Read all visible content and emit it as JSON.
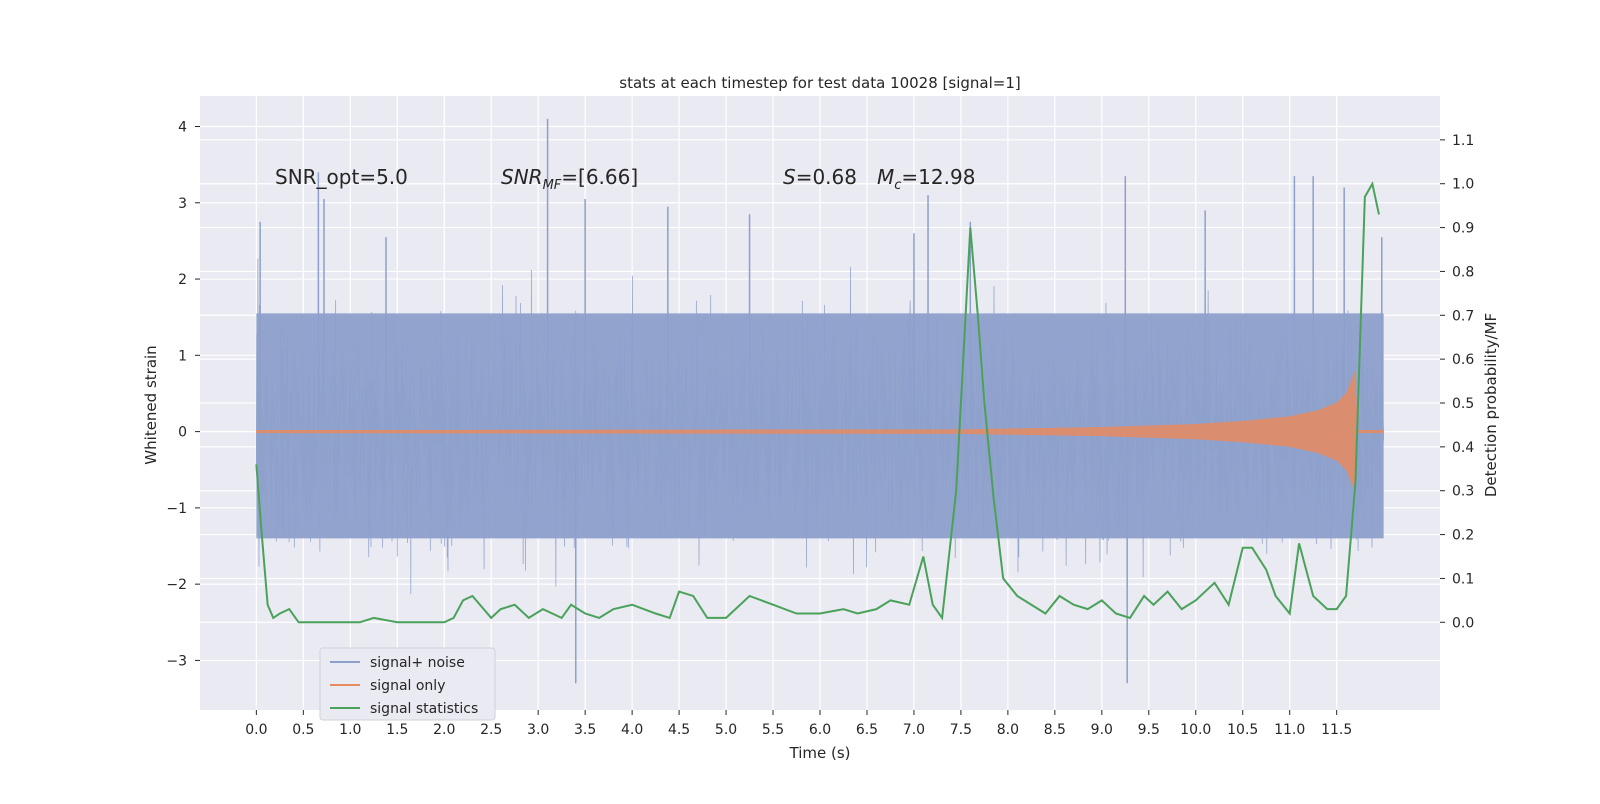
{
  "chart_data": {
    "type": "line",
    "title": "stats at each timestep for test data 10028 [signal=1]",
    "xlabel": "Time (s)",
    "ylabel_left": "Whitened strain",
    "ylabel_right": "Detection probability/MF",
    "xlim": [
      -0.6,
      12.6
    ],
    "ylim_left": [
      -3.65,
      4.4
    ],
    "ylim_right": [
      -0.2,
      1.2
    ],
    "x_ticks": [
      0.0,
      0.5,
      1.0,
      1.5,
      2.0,
      2.5,
      3.0,
      3.5,
      4.0,
      4.5,
      5.0,
      5.5,
      6.0,
      6.5,
      7.0,
      7.5,
      8.0,
      8.5,
      9.0,
      9.5,
      10.0,
      10.5,
      11.0,
      11.5
    ],
    "x_tick_labels": [
      "0.0",
      "0.5",
      "1.0",
      "1.5",
      "2.0",
      "2.5",
      "3.0",
      "3.5",
      "4.0",
      "4.5",
      "5.0",
      "5.5",
      "6.0",
      "6.5",
      "7.0",
      "7.5",
      "8.0",
      "8.5",
      "9.0",
      "9.5",
      "10.0",
      "10.5",
      "11.0",
      "11.5"
    ],
    "y_left_ticks": [
      -3,
      -2,
      -1,
      0,
      1,
      2,
      3,
      4
    ],
    "y_left_tick_labels": [
      "−3",
      "−2",
      "−1",
      "0",
      "1",
      "2",
      "3",
      "4"
    ],
    "y_right_ticks": [
      0.0,
      0.1,
      0.2,
      0.3,
      0.4,
      0.5,
      0.6,
      0.7,
      0.8,
      0.9,
      1.0,
      1.1
    ],
    "y_right_tick_labels": [
      "0.0",
      "0.1",
      "0.2",
      "0.3",
      "0.4",
      "0.5",
      "0.6",
      "0.7",
      "0.8",
      "0.9",
      "1.0",
      "1.1"
    ],
    "grid": true,
    "legend_position": "lower-left",
    "annotations": {
      "snr_opt": "SNR_opt=5.0",
      "snr_mf_main": "SNR",
      "snr_mf_sub": "MF",
      "snr_mf_rest": "=[6.66]",
      "s_var": "S",
      "s_rest": "=0.68",
      "mc_var": "M",
      "mc_sub": "c",
      "mc_rest": "=12.98"
    },
    "series": [
      {
        "name": "signal+ noise",
        "color": "#8da0cb",
        "axis": "left",
        "t_range": [
          0.0,
          12.0
        ],
        "band_core": [
          -1.4,
          1.55
        ],
        "band_extreme": [
          -3.3,
          4.1
        ],
        "spikes": [
          [
            0.04,
            2.75
          ],
          [
            0.66,
            3.4
          ],
          [
            0.72,
            3.05
          ],
          [
            1.38,
            2.55
          ],
          [
            3.1,
            4.1
          ],
          [
            3.5,
            3.05
          ],
          [
            3.4,
            -3.3
          ],
          [
            4.38,
            2.95
          ],
          [
            5.25,
            2.85
          ],
          [
            7.0,
            2.6
          ],
          [
            7.15,
            3.1
          ],
          [
            7.6,
            2.75
          ],
          [
            9.25,
            3.35
          ],
          [
            9.27,
            -3.3
          ],
          [
            10.1,
            2.9
          ],
          [
            11.05,
            3.35
          ],
          [
            11.25,
            3.35
          ],
          [
            11.58,
            3.2
          ],
          [
            11.98,
            2.55
          ]
        ]
      },
      {
        "name": "signal only",
        "color": "#e78a5e",
        "axis": "left",
        "envelope": [
          [
            0.0,
            0.02
          ],
          [
            7.5,
            0.03
          ],
          [
            8.0,
            0.04
          ],
          [
            9.0,
            0.06
          ],
          [
            10.0,
            0.1
          ],
          [
            10.5,
            0.14
          ],
          [
            11.0,
            0.2
          ],
          [
            11.3,
            0.28
          ],
          [
            11.5,
            0.38
          ],
          [
            11.6,
            0.5
          ],
          [
            11.65,
            0.65
          ],
          [
            11.7,
            0.8
          ],
          [
            11.72,
            0.02
          ],
          [
            12.0,
            0.02
          ]
        ]
      },
      {
        "name": "signal statistics",
        "color": "#4aa25a",
        "axis": "right",
        "x": [
          0.0,
          0.05,
          0.12,
          0.18,
          0.25,
          0.35,
          0.45,
          0.55,
          0.7,
          0.85,
          1.0,
          1.1,
          1.25,
          1.5,
          1.75,
          2.0,
          2.1,
          2.2,
          2.3,
          2.5,
          2.6,
          2.75,
          2.9,
          3.05,
          3.25,
          3.35,
          3.5,
          3.65,
          3.8,
          4.0,
          4.25,
          4.4,
          4.5,
          4.65,
          4.8,
          5.0,
          5.25,
          5.5,
          5.75,
          6.0,
          6.25,
          6.4,
          6.6,
          6.75,
          6.95,
          7.1,
          7.2,
          7.3,
          7.45,
          7.6,
          7.68,
          7.75,
          7.85,
          7.95,
          8.1,
          8.25,
          8.4,
          8.55,
          8.7,
          8.85,
          9.0,
          9.15,
          9.3,
          9.45,
          9.55,
          9.7,
          9.85,
          10.0,
          10.2,
          10.35,
          10.5,
          10.6,
          10.75,
          10.85,
          11.0,
          11.1,
          11.25,
          11.4,
          11.5,
          11.6,
          11.7,
          11.8,
          11.88,
          11.95
        ],
        "y": [
          0.36,
          0.22,
          0.04,
          0.01,
          0.02,
          0.03,
          0.0,
          0.0,
          0.0,
          0.0,
          0.0,
          0.0,
          0.01,
          0.0,
          0.0,
          0.0,
          0.01,
          0.05,
          0.06,
          0.01,
          0.03,
          0.04,
          0.01,
          0.03,
          0.01,
          0.04,
          0.02,
          0.01,
          0.03,
          0.04,
          0.02,
          0.01,
          0.07,
          0.06,
          0.01,
          0.01,
          0.06,
          0.04,
          0.02,
          0.02,
          0.03,
          0.02,
          0.03,
          0.05,
          0.04,
          0.15,
          0.04,
          0.01,
          0.3,
          0.9,
          0.7,
          0.5,
          0.28,
          0.1,
          0.06,
          0.04,
          0.02,
          0.06,
          0.04,
          0.03,
          0.05,
          0.02,
          0.01,
          0.06,
          0.04,
          0.07,
          0.03,
          0.05,
          0.09,
          0.04,
          0.17,
          0.17,
          0.12,
          0.06,
          0.02,
          0.18,
          0.06,
          0.03,
          0.03,
          0.06,
          0.32,
          0.97,
          1.0,
          0.93
        ]
      }
    ]
  }
}
